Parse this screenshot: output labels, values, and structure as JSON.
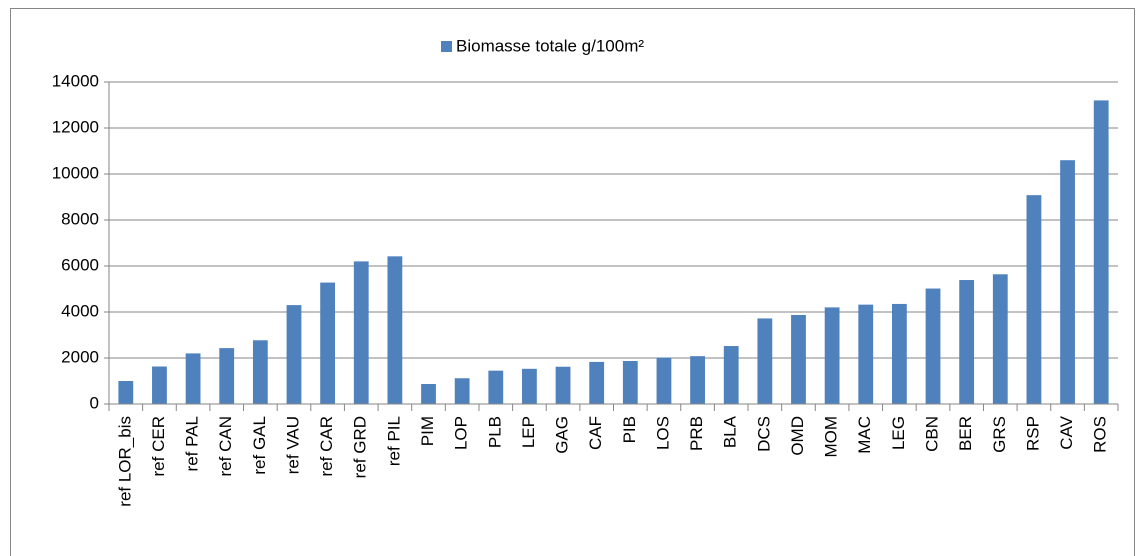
{
  "chart_data": {
    "type": "bar",
    "legend": "Biomasse totale g/100m²",
    "color": "#4f81bd",
    "categories": [
      "ref LOR_bis",
      "ref CER",
      "ref PAL",
      "ref CAN",
      "ref GAL",
      "ref VAU",
      "ref CAR",
      "ref GRD",
      "ref PIL",
      "PIM",
      "LOP",
      "PLB",
      "LEP",
      "GAG",
      "CAF",
      "PIB",
      "LOS",
      "PRB",
      "BLA",
      "DCS",
      "OMD",
      "MOM",
      "MAC",
      "LEG",
      "CBN",
      "BER",
      "GRS",
      "RSP",
      "CAV",
      "ROS"
    ],
    "values": [
      1000,
      1630,
      2200,
      2430,
      2770,
      4300,
      5280,
      6200,
      6420,
      870,
      1120,
      1450,
      1530,
      1620,
      1830,
      1870,
      2020,
      2080,
      2520,
      3720,
      3870,
      4200,
      4320,
      4350,
      5020,
      5390,
      5640,
      9080,
      10600,
      13200
    ],
    "ylim": [
      0,
      14000
    ],
    "yticks": [
      0,
      2000,
      4000,
      6000,
      8000,
      10000,
      12000,
      14000
    ],
    "grid": true
  }
}
